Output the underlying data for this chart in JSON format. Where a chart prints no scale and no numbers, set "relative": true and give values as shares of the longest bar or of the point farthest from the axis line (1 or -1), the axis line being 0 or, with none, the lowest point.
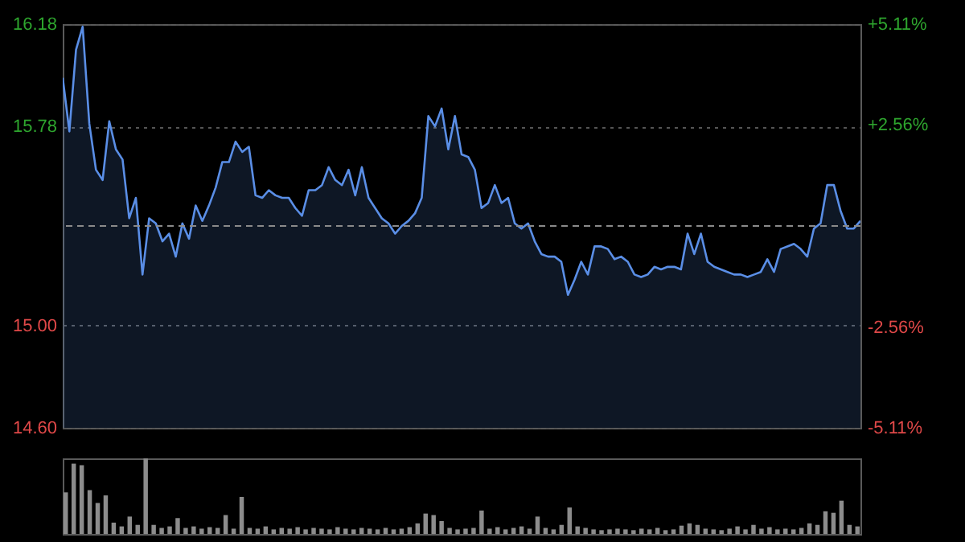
{
  "chart_data": [
    {
      "type": "area",
      "categories": [
        null,
        null,
        null,
        null,
        null,
        null,
        null,
        null,
        null,
        null,
        null,
        null,
        null,
        null,
        null,
        null,
        null,
        null,
        null,
        null,
        null,
        null,
        null,
        null,
        null,
        null,
        null,
        null,
        null,
        null,
        null,
        null,
        null,
        null,
        null,
        null,
        null,
        null,
        null,
        null,
        null,
        null,
        null,
        null,
        null,
        null,
        null,
        null,
        null,
        null,
        null,
        null,
        null,
        null,
        null,
        null,
        null,
        null,
        null,
        null,
        null,
        null,
        null,
        null,
        null,
        null,
        null,
        null,
        null,
        null,
        null,
        null,
        null,
        null,
        null,
        null,
        null,
        null,
        null,
        null,
        null,
        null,
        null,
        null,
        null,
        null,
        null,
        null,
        null,
        null,
        null,
        null,
        null,
        null,
        null,
        null,
        null,
        null,
        null,
        null,
        null,
        null,
        null,
        null,
        null,
        null,
        null,
        null,
        null,
        null,
        null,
        null,
        null,
        null,
        null,
        null,
        null,
        null,
        null,
        null,
        null
      ],
      "ylim": [
        14.6,
        16.18
      ],
      "yticks": [
        {
          "value": 16.18,
          "label": "16.18"
        },
        {
          "value": 15.78,
          "label": "15.78"
        },
        {
          "value": 15,
          "label": "15.00"
        },
        {
          "value": 14.6,
          "label": "14.60"
        }
      ],
      "y2lim": [
        -5.11,
        5.11
      ],
      "y2ticks": [
        {
          "value": 5.11,
          "label": "+5.11%"
        },
        {
          "value": 2.56,
          "label": "+2.56%"
        },
        {
          "value": -2.56,
          "label": "-2.56%"
        },
        {
          "value": -5.11,
          "label": "-5.11%"
        }
      ],
      "grid": "y",
      "tick_labels": "y",
      "ref_lines": [
        {
          "axis": "y",
          "value": 15.39,
          "color": "#8a8a8a",
          "line_style": "dashed"
        }
      ],
      "series": [
        {
          "color": "#5a8ee6",
          "values": [
            15.97,
            15.76,
            16.08,
            16.17,
            15.79,
            15.61,
            15.57,
            15.8,
            15.69,
            15.65,
            15.42,
            15.5,
            15.2,
            15.42,
            15.4,
            15.33,
            15.36,
            15.27,
            15.4,
            15.34,
            15.47,
            15.41,
            15.47,
            15.54,
            15.64,
            15.64,
            15.72,
            15.68,
            15.7,
            15.51,
            15.5,
            15.53,
            15.51,
            15.5,
            15.5,
            15.46,
            15.43,
            15.53,
            15.53,
            15.55,
            15.62,
            15.57,
            15.55,
            15.61,
            15.51,
            15.62,
            15.5,
            15.46,
            15.42,
            15.4,
            15.36,
            15.39,
            15.41,
            15.44,
            15.5,
            15.82,
            15.78,
            15.85,
            15.69,
            15.82,
            15.67,
            15.66,
            15.61,
            15.46,
            15.48,
            15.55,
            15.48,
            15.5,
            15.4,
            15.38,
            15.4,
            15.33,
            15.28,
            15.27,
            15.27,
            15.25,
            15.12,
            15.18,
            15.25,
            15.2,
            15.31,
            15.31,
            15.3,
            15.26,
            15.27,
            15.25,
            15.2,
            15.19,
            15.2,
            15.23,
            15.22,
            15.23,
            15.23,
            15.22,
            15.36,
            15.28,
            15.36,
            15.25,
            15.23,
            15.22,
            15.21,
            15.2,
            15.2,
            15.19,
            15.2,
            15.21,
            15.26,
            15.21,
            15.3,
            15.31,
            15.32,
            15.3,
            15.27,
            15.38,
            15.4,
            15.55,
            15.55,
            15.45,
            15.38,
            15.38,
            15.41
          ]
        }
      ]
    },
    {
      "type": "bar",
      "relative": true,
      "tick_labels": false,
      "categories": [
        null,
        null,
        null,
        null,
        null,
        null,
        null,
        null,
        null,
        null,
        null,
        null,
        null,
        null,
        null,
        null,
        null,
        null,
        null,
        null,
        null,
        null,
        null,
        null,
        null,
        null,
        null,
        null,
        null,
        null,
        null,
        null,
        null,
        null,
        null,
        null,
        null,
        null,
        null,
        null,
        null,
        null,
        null,
        null,
        null,
        null,
        null,
        null,
        null,
        null,
        null,
        null,
        null,
        null,
        null,
        null,
        null,
        null,
        null,
        null,
        null,
        null,
        null,
        null,
        null,
        null,
        null,
        null,
        null,
        null,
        null,
        null,
        null,
        null,
        null,
        null,
        null,
        null,
        null,
        null,
        null,
        null,
        null,
        null,
        null,
        null,
        null,
        null,
        null,
        null,
        null,
        null,
        null,
        null,
        null,
        null,
        null,
        null,
        null,
        null
      ],
      "series": [
        {
          "color": "#8c8c8c",
          "values": [
            0.55,
            0.93,
            0.91,
            0.58,
            0.41,
            0.51,
            0.15,
            0.1,
            0.23,
            0.12,
            1.0,
            0.12,
            0.08,
            0.1,
            0.21,
            0.08,
            0.1,
            0.07,
            0.09,
            0.08,
            0.25,
            0.07,
            0.49,
            0.08,
            0.07,
            0.1,
            0.06,
            0.08,
            0.07,
            0.09,
            0.06,
            0.08,
            0.07,
            0.06,
            0.09,
            0.07,
            0.06,
            0.08,
            0.07,
            0.06,
            0.08,
            0.06,
            0.07,
            0.09,
            0.14,
            0.27,
            0.25,
            0.17,
            0.08,
            0.06,
            0.07,
            0.08,
            0.31,
            0.07,
            0.09,
            0.06,
            0.08,
            0.1,
            0.07,
            0.23,
            0.08,
            0.06,
            0.12,
            0.35,
            0.1,
            0.08,
            0.06,
            0.05,
            0.06,
            0.07,
            0.06,
            0.05,
            0.07,
            0.06,
            0.08,
            0.05,
            0.06,
            0.11,
            0.14,
            0.12,
            0.07,
            0.06,
            0.05,
            0.07,
            0.1,
            0.06,
            0.12,
            0.07,
            0.09,
            0.06,
            0.07,
            0.06,
            0.08,
            0.14,
            0.12,
            0.3,
            0.28,
            0.44,
            0.12,
            0.1
          ]
        }
      ]
    }
  ]
}
